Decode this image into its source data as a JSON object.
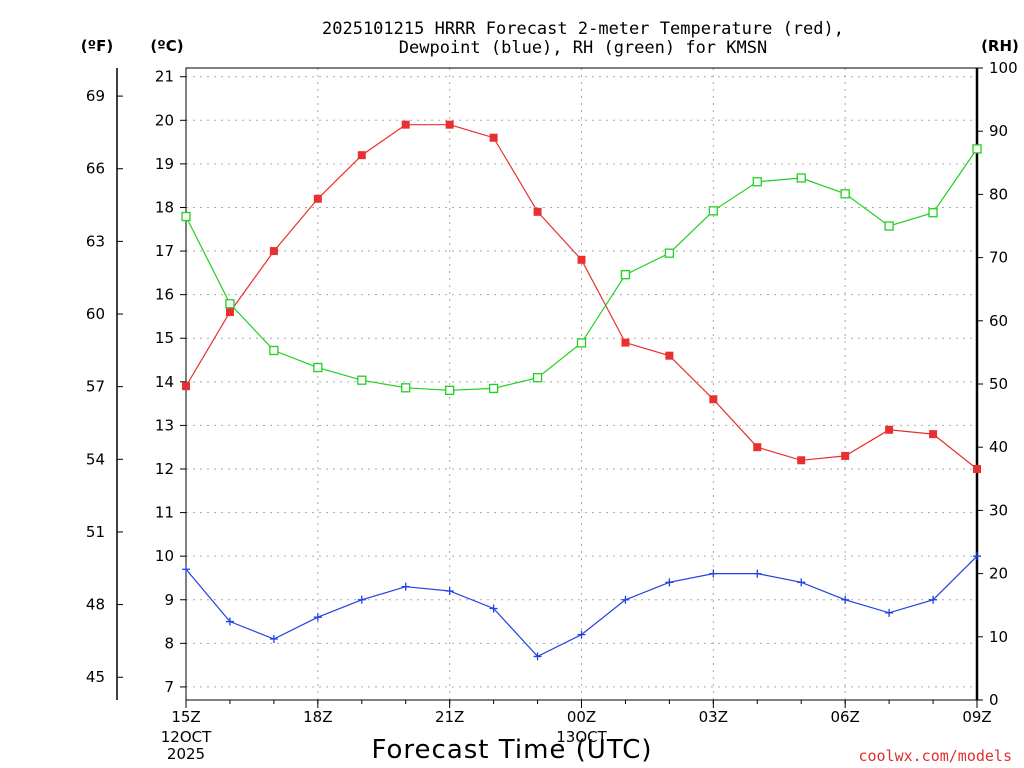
{
  "chart_data": {
    "type": "line",
    "title_lines": [
      "2025101215 HRRR Forecast 2-meter Temperature (red),",
      "Dewpoint (blue), RH (green) for KMSN"
    ],
    "xlabel": "Forecast Time (UTC)",
    "credit": "coolwx.com/models",
    "x_hours": [
      0,
      1,
      2,
      3,
      4,
      5,
      6,
      7,
      8,
      9,
      10,
      11,
      12,
      13,
      14,
      15,
      16,
      17,
      18
    ],
    "x_ticks": [
      {
        "hour": 0,
        "label": "15Z",
        "sub": [
          "12OCT",
          "2025"
        ]
      },
      {
        "hour": 3,
        "label": "18Z",
        "sub": []
      },
      {
        "hour": 6,
        "label": "21Z",
        "sub": []
      },
      {
        "hour": 9,
        "label": "00Z",
        "sub": [
          "13OCT"
        ]
      },
      {
        "hour": 12,
        "label": "03Z",
        "sub": []
      },
      {
        "hour": 15,
        "label": "06Z",
        "sub": []
      },
      {
        "hour": 18,
        "label": "09Z",
        "sub": []
      }
    ],
    "y_left_c": {
      "label": "(ºC)",
      "range": [
        6.7,
        21.2
      ],
      "ticks": [
        7,
        8,
        9,
        10,
        11,
        12,
        13,
        14,
        15,
        16,
        17,
        18,
        19,
        20,
        21
      ]
    },
    "y_left_f": {
      "label": "(ºF)",
      "ticks": [
        45,
        48,
        51,
        54,
        57,
        60,
        63,
        66,
        69
      ]
    },
    "y_right_rh": {
      "label": "(RH)",
      "range": [
        0,
        100
      ],
      "ticks": [
        0,
        10,
        20,
        30,
        40,
        50,
        60,
        70,
        80,
        90,
        100
      ]
    },
    "series": [
      {
        "name": "Temperature",
        "color": "#e83030",
        "axis": "c",
        "marker": "filled-square",
        "values": [
          13.9,
          15.6,
          17.0,
          18.2,
          19.2,
          19.9,
          19.9,
          19.6,
          17.9,
          16.8,
          14.9,
          14.6,
          13.6,
          12.5,
          12.2,
          12.3,
          12.9,
          12.8,
          12.0
        ]
      },
      {
        "name": "Dewpoint",
        "color": "#2040e0",
        "axis": "c",
        "marker": "plus",
        "values": [
          9.7,
          8.5,
          8.1,
          8.6,
          9.0,
          9.3,
          9.2,
          8.8,
          7.7,
          8.2,
          9.0,
          9.4,
          9.6,
          9.6,
          9.4,
          9.0,
          8.7,
          9.0,
          10.0
        ]
      },
      {
        "name": "RH",
        "color": "#20d020",
        "axis": "rh",
        "marker": "open-square",
        "values": [
          76.5,
          62.7,
          55.3,
          52.6,
          50.6,
          49.4,
          49.0,
          49.3,
          51.0,
          56.5,
          67.3,
          70.7,
          77.4,
          82.0,
          82.6,
          80.1,
          75.0,
          77.1,
          87.2
        ]
      }
    ],
    "grid": true
  }
}
